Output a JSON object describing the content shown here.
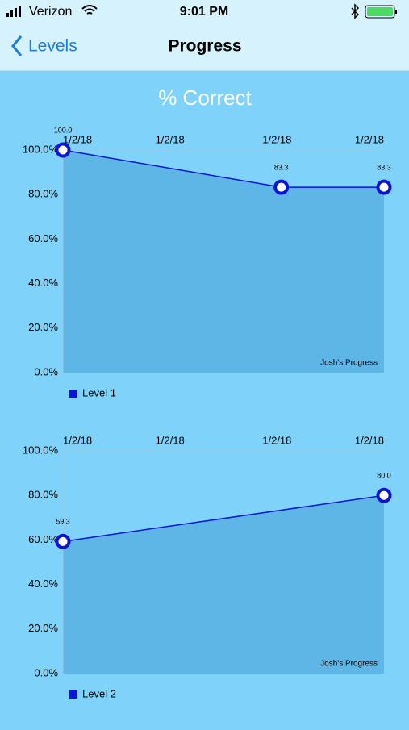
{
  "status_bar": {
    "carrier": "Verizon",
    "time": "9:01 PM"
  },
  "nav": {
    "back": "Levels",
    "title": "Progress"
  },
  "page": {
    "heading": "% Correct"
  },
  "chart_data": [
    {
      "type": "line",
      "annotation": "Josh's Progress",
      "legend": "bottom-left",
      "area_color": "#5eb6e6",
      "x": [
        0,
        2.04,
        3
      ],
      "xlim": [
        0,
        3
      ],
      "xticks": [
        {
          "value": 0,
          "label": "1/2/18"
        },
        {
          "value": 1,
          "label": "1/2/18"
        },
        {
          "value": 2,
          "label": "1/2/18"
        },
        {
          "value": 3,
          "label": "1/2/18"
        }
      ],
      "ylim": [
        0,
        100
      ],
      "yticks": [
        {
          "value": 0,
          "label": "0.0%"
        },
        {
          "value": 20,
          "label": "20.0%"
        },
        {
          "value": 40,
          "label": "40.0%"
        },
        {
          "value": 60,
          "label": "60.0%"
        },
        {
          "value": 80,
          "label": "80.0%"
        },
        {
          "value": 100,
          "label": "100.0%"
        }
      ],
      "series": [
        {
          "name": "Level 1",
          "color": "#0a14d6",
          "values": [
            100,
            83.3,
            83.3
          ],
          "value_labels": [
            "100.0",
            "83.3",
            "83.3"
          ]
        }
      ]
    },
    {
      "type": "line",
      "annotation": "Josh's Progress",
      "legend": "bottom-left",
      "area_color": "#5eb6e6",
      "x": [
        0,
        3
      ],
      "xlim": [
        0,
        3
      ],
      "xticks": [
        {
          "value": 0,
          "label": "1/2/18"
        },
        {
          "value": 1,
          "label": "1/2/18"
        },
        {
          "value": 2,
          "label": "1/2/18"
        },
        {
          "value": 3,
          "label": "1/2/18"
        }
      ],
      "ylim": [
        0,
        100
      ],
      "yticks": [
        {
          "value": 0,
          "label": "0.0%"
        },
        {
          "value": 20,
          "label": "20.0%"
        },
        {
          "value": 40,
          "label": "40.0%"
        },
        {
          "value": 60,
          "label": "60.0%"
        },
        {
          "value": 80,
          "label": "80.0%"
        },
        {
          "value": 100,
          "label": "100.0%"
        }
      ],
      "series": [
        {
          "name": "Level 2",
          "color": "#0a14d6",
          "values": [
            59.3,
            80.0
          ],
          "value_labels": [
            "59.3",
            "80.0"
          ]
        }
      ]
    }
  ]
}
